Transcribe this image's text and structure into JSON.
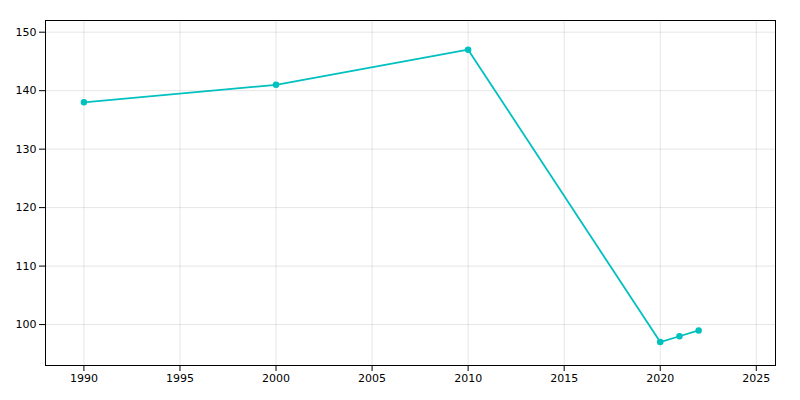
{
  "chart_data": {
    "type": "line",
    "x": [
      1990,
      2000,
      2010,
      2020,
      2021,
      2022
    ],
    "values": [
      138,
      141,
      147,
      97,
      98,
      99
    ],
    "color": "#00c0c0",
    "marker": "circle",
    "xlim": [
      1988,
      2026
    ],
    "ylim": [
      93,
      152
    ],
    "xticks": [
      1990,
      1995,
      2000,
      2005,
      2010,
      2015,
      2020,
      2025
    ],
    "yticks": [
      100,
      110,
      120,
      130,
      140,
      150
    ],
    "grid": true
  }
}
